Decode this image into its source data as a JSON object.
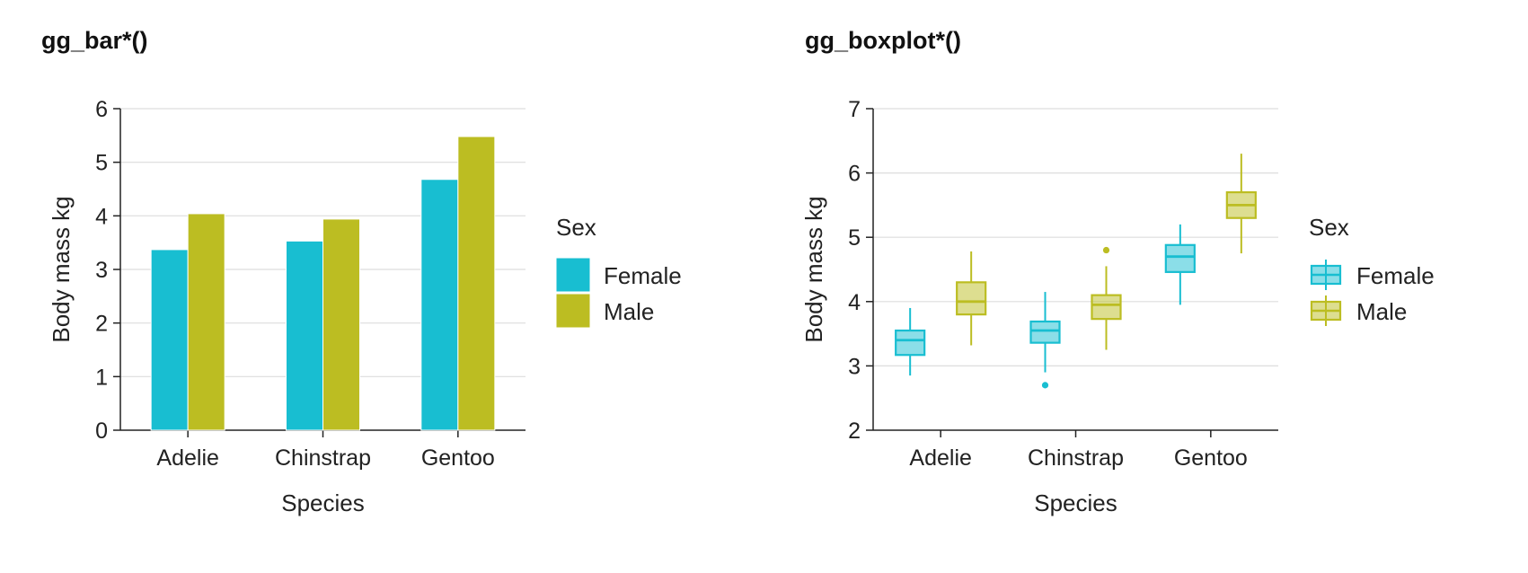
{
  "chart_data": [
    {
      "type": "bar",
      "title": "gg_bar*()",
      "categories": [
        "Adelie",
        "Chinstrap",
        "Gentoo"
      ],
      "series": [
        {
          "name": "Female",
          "values": [
            3.37,
            3.53,
            4.68
          ]
        },
        {
          "name": "Male",
          "values": [
            4.04,
            3.94,
            5.48
          ]
        }
      ],
      "xlabel": "Species",
      "ylabel": "Body mass kg",
      "ylim": [
        0,
        6
      ],
      "yticks": [
        0,
        1,
        2,
        3,
        4,
        5,
        6
      ],
      "legend_title": "Sex",
      "legend_position": "right",
      "grid": "horizontal",
      "colors": {
        "Female": "#18BED1",
        "Male": "#BCBD22"
      }
    },
    {
      "type": "boxplot",
      "title": "gg_boxplot*()",
      "categories": [
        "Adelie",
        "Chinstrap",
        "Gentoo"
      ],
      "series": [
        {
          "name": "Female",
          "boxes": [
            {
              "whisker_low": 2.85,
              "q1": 3.17,
              "median": 3.4,
              "q3": 3.55,
              "whisker_high": 3.9,
              "outliers": []
            },
            {
              "whisker_low": 2.9,
              "q1": 3.36,
              "median": 3.55,
              "q3": 3.69,
              "whisker_high": 4.15,
              "outliers": [
                2.7
              ]
            },
            {
              "whisker_low": 3.95,
              "q1": 4.46,
              "median": 4.7,
              "q3": 4.88,
              "whisker_high": 5.2,
              "outliers": []
            }
          ]
        },
        {
          "name": "Male",
          "boxes": [
            {
              "whisker_low": 3.32,
              "q1": 3.8,
              "median": 4.0,
              "q3": 4.3,
              "whisker_high": 4.78,
              "outliers": []
            },
            {
              "whisker_low": 3.25,
              "q1": 3.73,
              "median": 3.95,
              "q3": 4.1,
              "whisker_high": 4.55,
              "outliers": [
                4.8
              ]
            },
            {
              "whisker_low": 4.75,
              "q1": 5.3,
              "median": 5.5,
              "q3": 5.7,
              "whisker_high": 6.3,
              "outliers": []
            }
          ]
        }
      ],
      "xlabel": "Species",
      "ylabel": "Body mass kg",
      "ylim": [
        2,
        7
      ],
      "yticks": [
        2,
        3,
        4,
        5,
        6,
        7
      ],
      "legend_title": "Sex",
      "legend_position": "right",
      "grid": "horizontal",
      "colors": {
        "Female": "#18BED1",
        "Male": "#BCBD22"
      }
    }
  ]
}
